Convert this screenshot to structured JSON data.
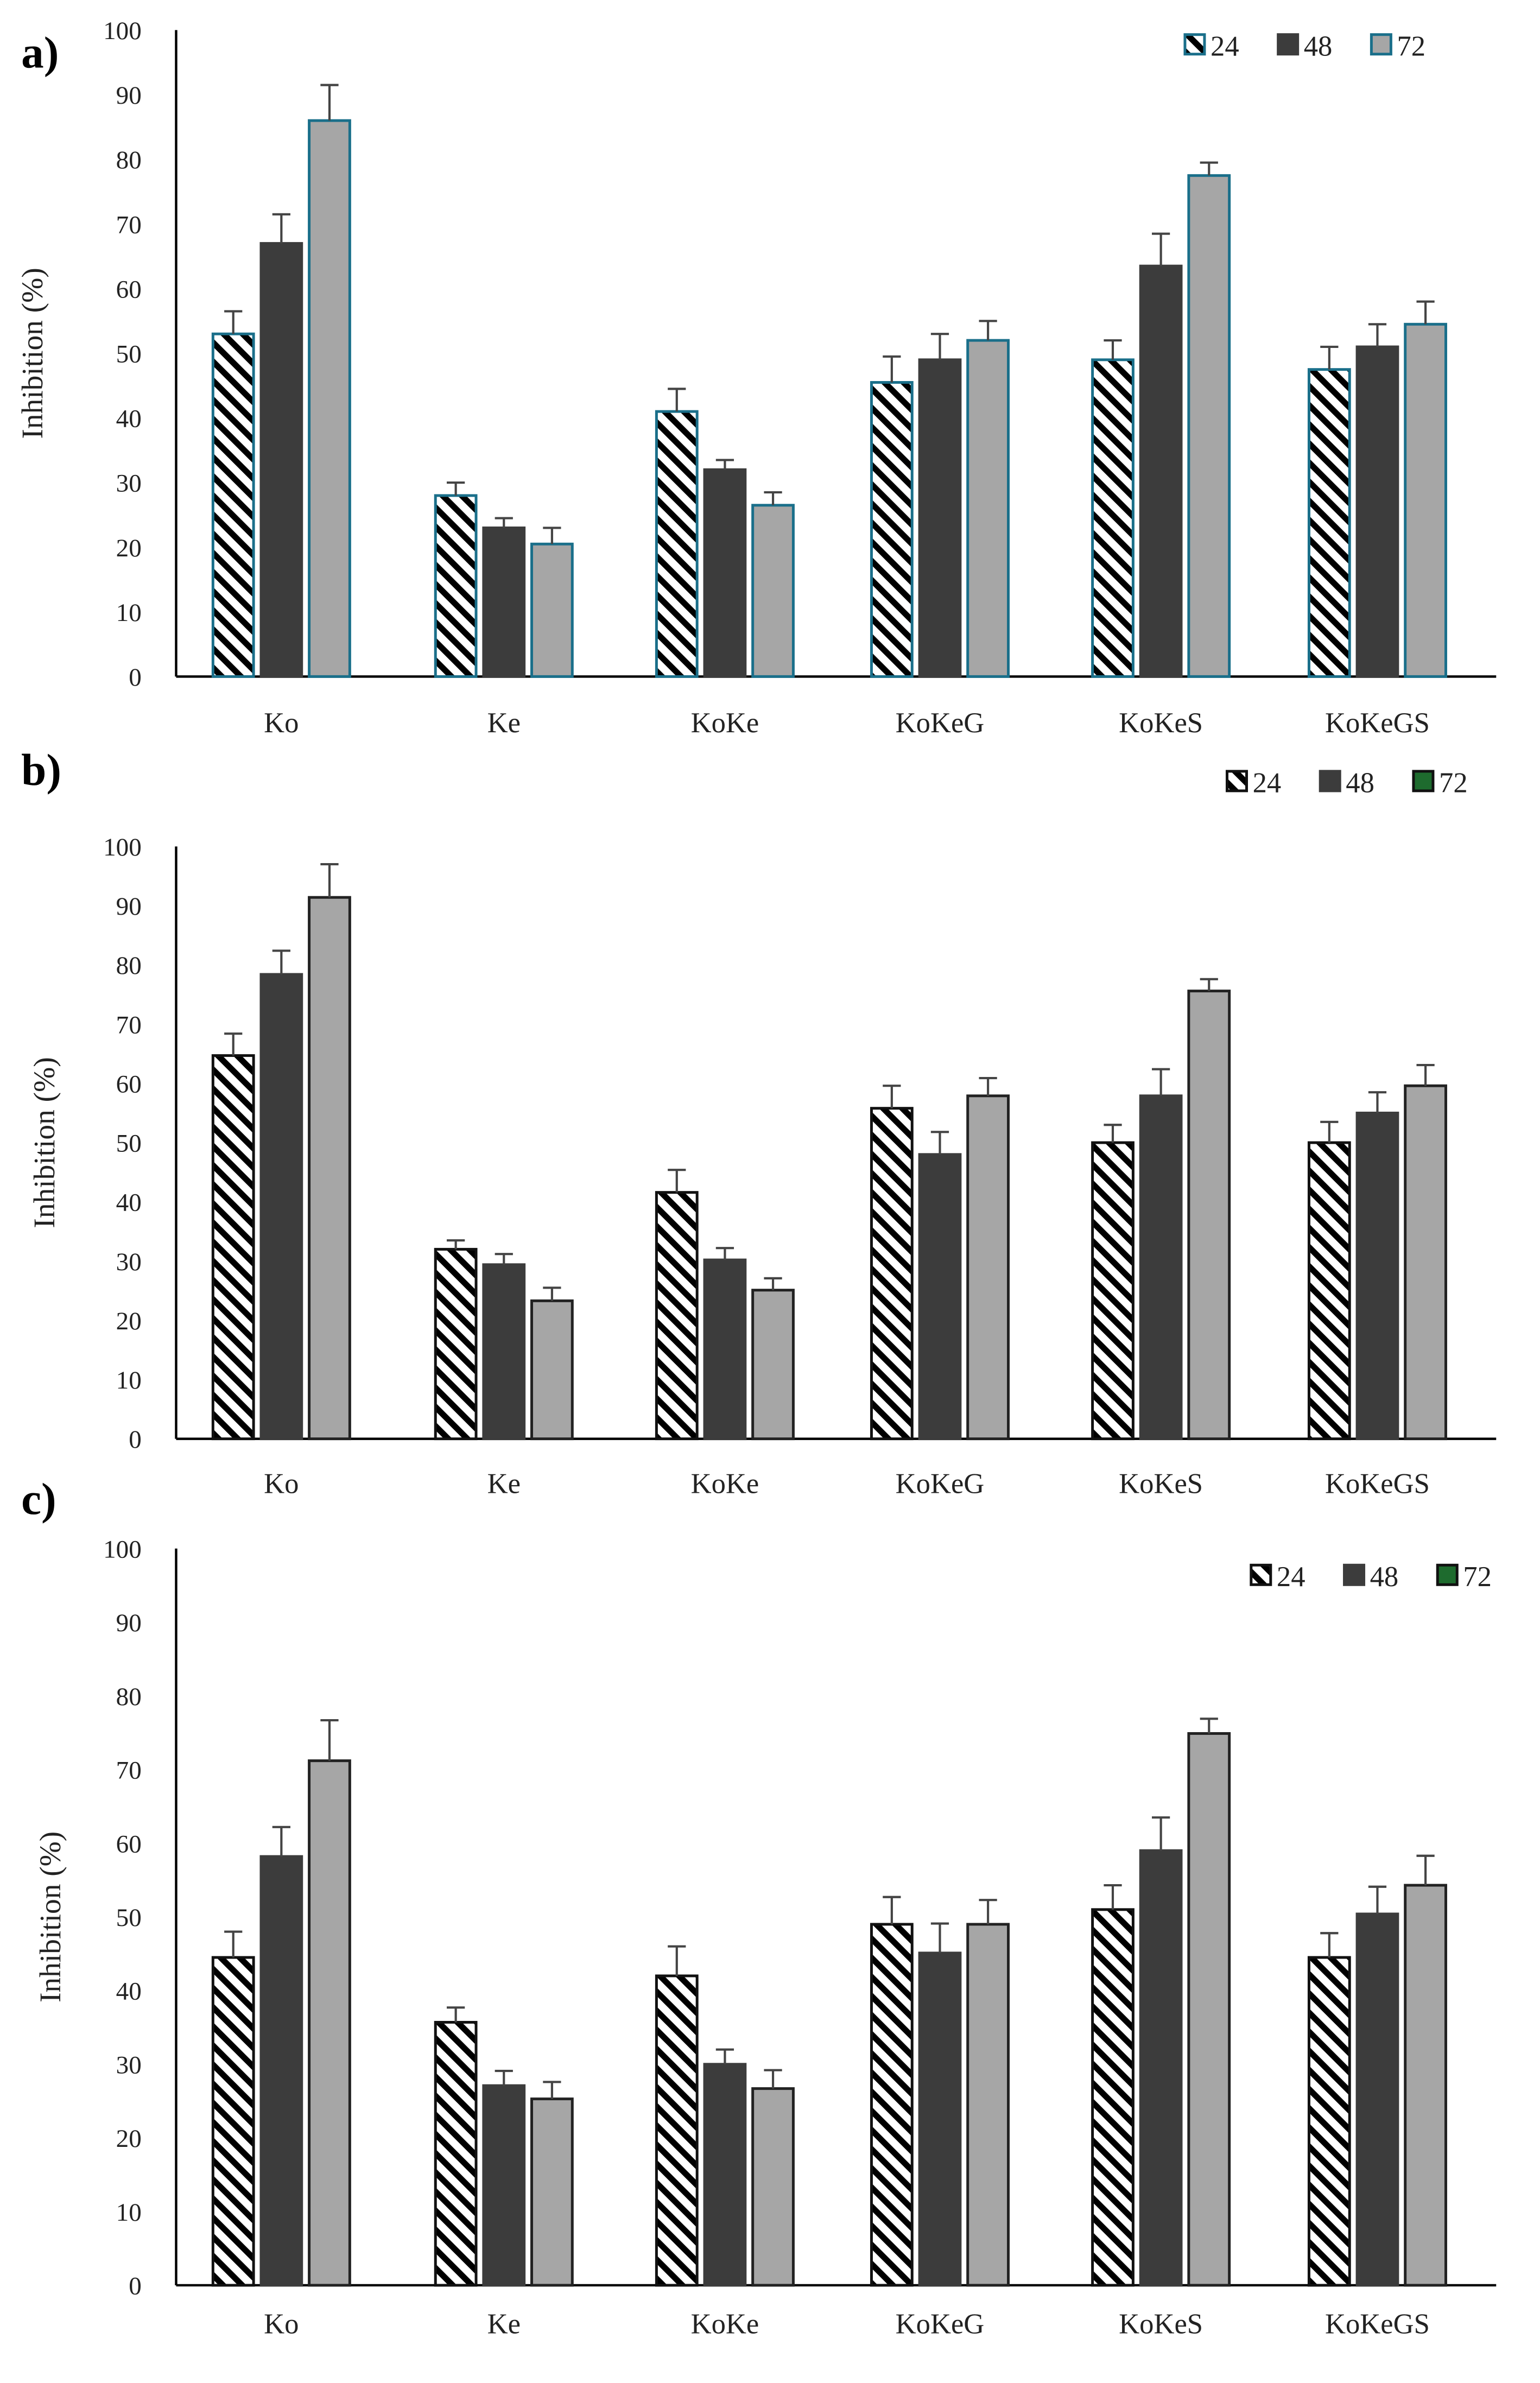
{
  "chart_data": [
    {
      "type": "bar",
      "panel_label": "a)",
      "ylabel": "Inhibition (%)",
      "ylim": [
        0,
        100
      ],
      "yticks": [
        "0",
        "10",
        "20",
        "30",
        "40",
        "50",
        "60",
        "70",
        "80",
        "90",
        "100"
      ],
      "categories": [
        "Ko",
        "Ke",
        "KoKe",
        "KoKeG",
        "KoKeS",
        "KoKeGS"
      ],
      "legend_position": "top-right",
      "series": [
        {
          "name": "24",
          "values": [
            53,
            28,
            41,
            45.5,
            49,
            47.5
          ],
          "errors": [
            3.5,
            2,
            3.5,
            4,
            3,
            3.5
          ],
          "fill": "hatch",
          "edge": "#1a6f8a"
        },
        {
          "name": "48",
          "values": [
            67,
            23,
            32,
            49,
            63.5,
            51
          ],
          "errors": [
            4.5,
            1.5,
            1.5,
            4,
            5,
            3.5
          ],
          "fill": "#3c3c3c",
          "edge": "#3c3c3c"
        },
        {
          "name": "72",
          "values": [
            86,
            20.5,
            26.5,
            52,
            77.5,
            54.5
          ],
          "errors": [
            5.5,
            2.5,
            2,
            3,
            2,
            3.5
          ],
          "fill": "#a6a6a6",
          "edge": "#1a6f8a"
        }
      ],
      "legend_swatch_edge": "#1a6f8a"
    },
    {
      "type": "bar",
      "panel_label": "b)",
      "ylabel": "Inhibition (%)",
      "ylim": [
        0,
        100
      ],
      "yticks": [
        "0",
        "10",
        "20",
        "30",
        "40",
        "50",
        "60",
        "70",
        "80",
        "90",
        "100"
      ],
      "categories": [
        "Ko",
        "Ke",
        "KoKe",
        "KoKeG",
        "KoKeS",
        "KoKeGS"
      ],
      "legend_position": "top-right",
      "series": [
        {
          "name": "24",
          "values": [
            64.7,
            32,
            41.6,
            55.8,
            50,
            50
          ],
          "errors": [
            3.7,
            1.5,
            3.8,
            3.8,
            3,
            3.5
          ],
          "fill": "hatch",
          "edge": "#111111"
        },
        {
          "name": "48",
          "values": [
            78.4,
            29.4,
            30.2,
            48,
            57.9,
            55
          ],
          "errors": [
            4,
            1.8,
            2,
            3.8,
            4.5,
            3.5
          ],
          "fill": "#3c3c3c",
          "edge": "#3c3c3c"
        },
        {
          "name": "72",
          "values": [
            91.4,
            23.3,
            25.1,
            57.9,
            75.6,
            59.6
          ],
          "errors": [
            5.6,
            2.2,
            2,
            3,
            2,
            3.5
          ],
          "fill": "#a6a6a6",
          "edge": "#222222",
          "legend_fill": "#1e6b2e"
        }
      ],
      "legend_swatch_edge": "#111111"
    },
    {
      "type": "bar",
      "panel_label": "c)",
      "ylabel": "Inhibition (%)",
      "ylim": [
        0,
        100
      ],
      "yticks": [
        "0",
        "10",
        "20",
        "30",
        "40",
        "50",
        "60",
        "70",
        "80",
        "90",
        "100"
      ],
      "categories": [
        "Ko",
        "Ke",
        "KoKe",
        "KoKeG",
        "KoKeS",
        "KoKeGS"
      ],
      "legend_position": "top-right",
      "series": [
        {
          "name": "24",
          "values": [
            44.5,
            35.7,
            42,
            49,
            51,
            44.5
          ],
          "errors": [
            3.5,
            2,
            4,
            3.7,
            3.3,
            3.3
          ],
          "fill": "hatch",
          "edge": "#111111"
        },
        {
          "name": "48",
          "values": [
            58.2,
            27.1,
            30,
            45.1,
            59,
            50.4
          ],
          "errors": [
            4,
            2,
            2,
            4,
            4.5,
            3.7
          ],
          "fill": "#3c3c3c",
          "edge": "#3c3c3c"
        },
        {
          "name": "72",
          "values": [
            71.2,
            25.3,
            26.7,
            49,
            74.9,
            54.3
          ],
          "errors": [
            5.5,
            2.3,
            2.5,
            3.3,
            2,
            4
          ],
          "fill": "#a6a6a6",
          "edge": "#222222",
          "legend_fill": "#1e6b2e"
        }
      ],
      "legend_swatch_edge": "#111111"
    }
  ]
}
